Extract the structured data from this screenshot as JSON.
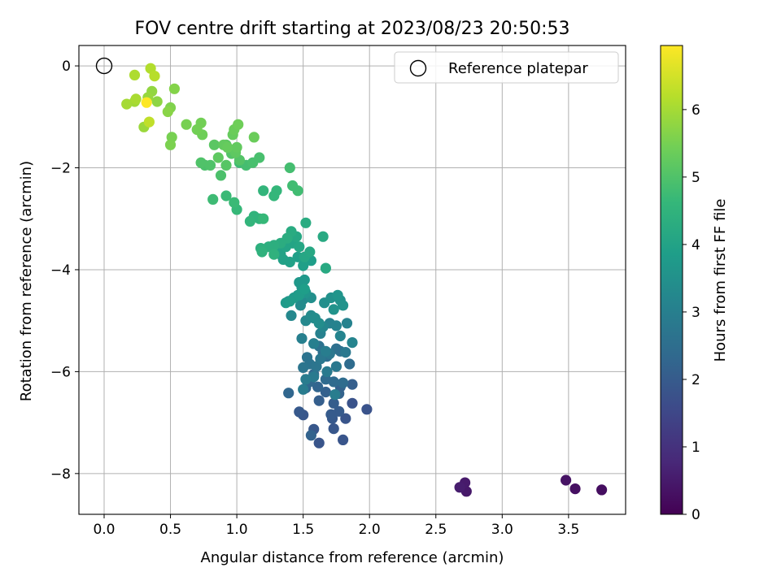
{
  "chart_data": {
    "type": "scatter",
    "title": "FOV centre drift starting at 2023/08/23 20:50:53",
    "xlabel": "Angular distance from reference (arcmin)",
    "ylabel": "Rotation from reference (arcmin)",
    "xlim": [
      -0.19,
      3.93
    ],
    "ylim": [
      -8.8,
      0.4
    ],
    "xticks": [
      0.0,
      0.5,
      1.0,
      1.5,
      2.0,
      2.5,
      3.0,
      3.5
    ],
    "xtick_labels": [
      "0.0",
      "0.5",
      "1.0",
      "1.5",
      "2.0",
      "2.5",
      "3.0",
      "3.5"
    ],
    "yticks": [
      0,
      -2,
      -4,
      -6,
      -8
    ],
    "ytick_labels": [
      "0",
      "−2",
      "−4",
      "−6",
      "−8"
    ],
    "grid": true,
    "legend": {
      "position": "upper right",
      "entries": [
        "Reference platepar"
      ]
    },
    "reference_point": {
      "x": 0.0,
      "y": 0.0,
      "label": "Reference platepar"
    },
    "colorbar": {
      "label": "Hours from first FF file",
      "range": [
        0,
        6.95
      ],
      "ticks": [
        0,
        1,
        2,
        3,
        4,
        5,
        6
      ],
      "tick_labels": [
        "0",
        "1",
        "2",
        "3",
        "4",
        "5",
        "6"
      ],
      "colormap": [
        "#440154",
        "#482878",
        "#3e4989",
        "#31688e",
        "#26828e",
        "#1f9e89",
        "#35b779",
        "#6ece58",
        "#b5de2b",
        "#fde725"
      ]
    },
    "series": [
      {
        "x": [
          3.75,
          3.55,
          3.48,
          2.73,
          2.72,
          2.68
        ],
        "y": [
          -8.32,
          -8.3,
          -8.13,
          -8.35,
          -8.18,
          -8.27
        ],
        "hours": [
          0.25,
          0.3,
          0.35,
          0.45,
          0.5,
          0.55
        ]
      },
      {
        "x": [
          1.98,
          1.87,
          1.82,
          1.8,
          1.62,
          1.58,
          1.73,
          1.5,
          1.47,
          1.72,
          1.77,
          1.71,
          1.73,
          1.62,
          1.87,
          1.78,
          1.67,
          1.77,
          1.56,
          1.61
        ],
        "y": [
          -6.74,
          -6.62,
          -6.92,
          -7.34,
          -7.4,
          -7.13,
          -7.12,
          -6.85,
          -6.79,
          -6.92,
          -6.78,
          -6.84,
          -6.62,
          -6.57,
          -6.25,
          -6.3,
          -6.4,
          -6.43,
          -7.25,
          -6.3
        ],
        "hours": [
          1.8,
          1.8,
          1.85,
          1.85,
          1.85,
          1.9,
          1.9,
          1.9,
          1.95,
          1.95,
          2.0,
          2.0,
          2.05,
          2.1,
          2.1,
          2.15,
          2.15,
          2.2,
          2.2,
          2.25
        ]
      },
      {
        "x": [
          1.39,
          1.52,
          1.55,
          1.58,
          1.67,
          1.73,
          1.8,
          1.85,
          1.68,
          1.65,
          1.75,
          1.78,
          1.62,
          1.58,
          1.53,
          1.55,
          1.6,
          1.5,
          1.63,
          1.7,
          1.82,
          1.75,
          1.68,
          1.58,
          1.52,
          1.5,
          1.74,
          1.67
        ],
        "y": [
          -6.42,
          -6.32,
          -6.2,
          -6.05,
          -6.15,
          -6.2,
          -6.22,
          -5.85,
          -5.7,
          -5.62,
          -5.55,
          -5.6,
          -5.5,
          -5.45,
          -5.72,
          -5.85,
          -5.9,
          -5.92,
          -5.75,
          -5.65,
          -5.62,
          -5.9,
          -6.0,
          -6.1,
          -6.15,
          -6.35,
          -6.45,
          -5.6
        ],
        "hours": [
          2.3,
          2.3,
          2.35,
          2.35,
          2.4,
          2.4,
          2.45,
          2.45,
          2.5,
          2.5,
          2.55,
          2.55,
          2.6,
          2.6,
          2.65,
          2.65,
          2.7,
          2.7,
          2.75,
          2.75,
          2.8,
          2.8,
          2.85,
          2.85,
          2.9,
          2.9,
          2.95,
          2.95
        ]
      },
      {
        "x": [
          1.49,
          1.58,
          1.63,
          1.7,
          1.75,
          1.83,
          1.87,
          1.78,
          1.65,
          1.58,
          1.52,
          1.41,
          1.39,
          1.5,
          1.48,
          1.56,
          1.59,
          1.62,
          1.56,
          1.66,
          1.71,
          1.78,
          1.8,
          1.73,
          1.76,
          1.52,
          1.46,
          1.49
        ],
        "y": [
          -5.35,
          -5.45,
          -5.25,
          -5.05,
          -5.1,
          -5.05,
          -5.43,
          -5.3,
          -5.12,
          -4.95,
          -5.0,
          -4.9,
          -4.62,
          -4.58,
          -4.7,
          -4.9,
          -4.95,
          -5.05,
          -4.55,
          -4.65,
          -4.55,
          -4.6,
          -4.7,
          -4.78,
          -4.5,
          -4.45,
          -4.5,
          -4.35
        ],
        "hours": [
          3.0,
          3.0,
          3.05,
          3.05,
          3.1,
          3.1,
          3.15,
          3.15,
          3.2,
          3.2,
          3.25,
          3.25,
          3.3,
          3.3,
          3.35,
          3.35,
          3.4,
          3.4,
          3.45,
          3.45,
          3.5,
          3.5,
          3.55,
          3.55,
          3.6,
          3.6,
          3.65,
          3.65
        ]
      },
      {
        "x": [
          1.47,
          1.51,
          1.43,
          1.37,
          1.4,
          1.47,
          1.51,
          1.56,
          1.5,
          1.46,
          1.4,
          1.35,
          1.33,
          1.3,
          1.37,
          1.42,
          1.47,
          1.51,
          1.55,
          1.45,
          1.67,
          1.65,
          1.52,
          1.41,
          1.38,
          1.33,
          1.28,
          1.24,
          1.18
        ],
        "y": [
          -4.25,
          -4.2,
          -4.55,
          -4.65,
          -4.62,
          -4.5,
          -4.38,
          -3.82,
          -3.92,
          -3.75,
          -3.85,
          -3.8,
          -3.7,
          -3.6,
          -3.55,
          -3.48,
          -3.55,
          -3.75,
          -3.65,
          -3.35,
          -3.97,
          -3.35,
          -3.08,
          -3.25,
          -3.38,
          -3.48,
          -3.52,
          -3.55,
          -3.58
        ],
        "hours": [
          3.7,
          3.7,
          3.75,
          3.75,
          3.8,
          3.8,
          3.85,
          3.85,
          3.9,
          3.9,
          3.95,
          3.95,
          4.0,
          4.0,
          4.05,
          4.05,
          4.1,
          4.1,
          4.15,
          4.15,
          4.2,
          4.2,
          4.25,
          4.25,
          4.3,
          4.3,
          4.35,
          4.35,
          4.4
        ]
      },
      {
        "x": [
          1.19,
          1.28,
          1.17,
          1.13,
          1.1,
          1.2,
          1.3,
          1.28,
          1.2,
          1.0,
          0.98,
          0.92,
          0.82,
          1.02,
          1.46,
          1.42,
          1.4,
          1.07,
          1.12,
          1.17,
          0.88,
          0.76,
          0.73,
          0.8,
          1.02,
          0.96,
          0.92
        ],
        "y": [
          -3.65,
          -3.7,
          -3.0,
          -2.95,
          -3.05,
          -2.45,
          -2.45,
          -2.55,
          -3.0,
          -2.82,
          -2.68,
          -2.55,
          -2.62,
          -1.9,
          -2.45,
          -2.35,
          -2.0,
          -1.95,
          -1.9,
          -1.8,
          -2.15,
          -1.95,
          -1.9,
          -1.95,
          -1.85,
          -1.72,
          -1.95
        ],
        "hours": [
          4.45,
          4.45,
          4.5,
          4.5,
          4.55,
          4.55,
          4.6,
          4.6,
          4.65,
          4.65,
          4.7,
          4.7,
          4.75,
          4.75,
          4.8,
          4.8,
          4.85,
          4.85,
          4.9,
          4.9,
          4.95,
          4.95,
          5.0,
          5.0,
          5.05,
          5.05,
          5.1
        ]
      },
      {
        "x": [
          0.92,
          0.83,
          0.86,
          0.99,
          1.0,
          0.9,
          0.93,
          0.97,
          1.13,
          0.98,
          1.01,
          0.74,
          0.7,
          0.73,
          0.62,
          0.51,
          0.5,
          0.5,
          0.53
        ],
        "y": [
          -1.55,
          -1.55,
          -1.8,
          -1.7,
          -1.6,
          -1.55,
          -1.6,
          -1.35,
          -1.4,
          -1.25,
          -1.15,
          -1.35,
          -1.25,
          -1.12,
          -1.15,
          -1.4,
          -1.55,
          -0.82,
          -0.45
        ],
        "hours": [
          5.15,
          5.15,
          5.2,
          5.2,
          5.25,
          5.25,
          5.3,
          5.3,
          5.35,
          5.35,
          5.4,
          5.4,
          5.45,
          5.45,
          5.5,
          5.5,
          5.55,
          5.6,
          5.65
        ]
      },
      {
        "x": [
          0.48,
          0.4,
          0.36,
          0.33,
          0.3,
          0.23,
          0.17,
          0.24,
          0.23,
          0.35,
          0.38,
          0.34
        ],
        "y": [
          -0.9,
          -0.7,
          -0.5,
          -0.62,
          -1.2,
          -0.7,
          -0.75,
          -0.65,
          -0.18,
          -0.05,
          -0.2,
          -1.1
        ],
        "hours": [
          5.7,
          5.75,
          5.8,
          5.85,
          5.9,
          5.95,
          6.0,
          6.05,
          6.1,
          6.15,
          6.2,
          6.3
        ]
      },
      {
        "x": [
          0.32
        ],
        "y": [
          -0.72
        ],
        "hours": [
          6.95
        ]
      }
    ]
  }
}
